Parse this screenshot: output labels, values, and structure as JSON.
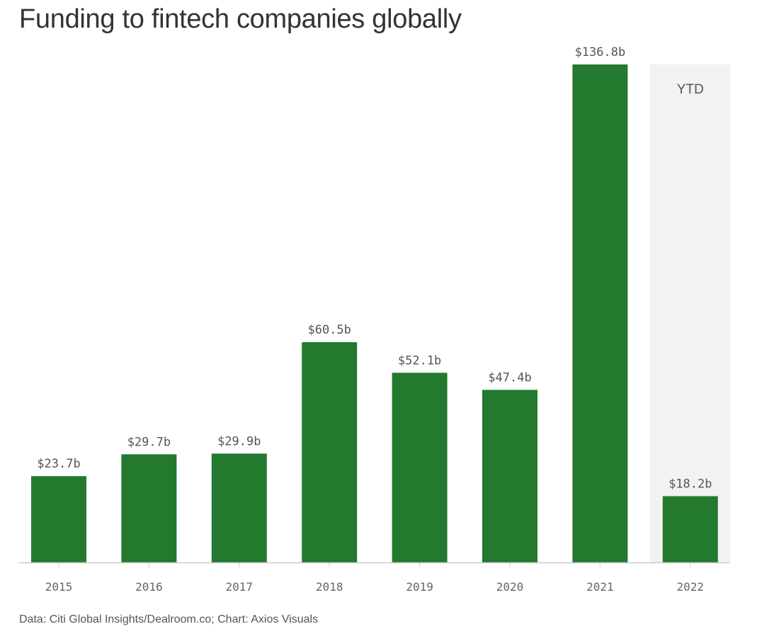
{
  "chart_data": {
    "type": "bar",
    "title": "Funding to fintech companies globally",
    "xlabel": "",
    "ylabel": "",
    "categories": [
      "2015",
      "2016",
      "2017",
      "2018",
      "2019",
      "2020",
      "2021",
      "2022"
    ],
    "values": [
      23.7,
      29.7,
      29.9,
      60.5,
      52.1,
      47.4,
      136.8,
      18.2
    ],
    "value_labels": [
      "$23.7b",
      "$29.7b",
      "$29.9b",
      "$60.5b",
      "$52.1b",
      "$47.4b",
      "$136.8b",
      "$18.2b"
    ],
    "ylim": [
      0,
      136.8
    ],
    "grid": false,
    "legend": "none",
    "annotation": {
      "category": "2022",
      "label": "YTD"
    },
    "source": "Data: Citi Global Insights/Dealroom.co; Chart: Axios Visuals"
  },
  "colors": {
    "bar": "#23792e",
    "annotation_band": "#f2f2f2",
    "axis_line": "#cccccc",
    "value_label": "#555555",
    "tick_label": "#666666",
    "annotation_label": "#555555"
  }
}
